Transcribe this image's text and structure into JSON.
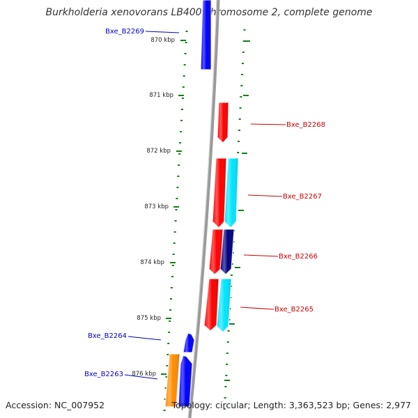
{
  "title": "Burkholderia xenovorans LB400 chromosome 2, complete genome",
  "footer": {
    "accession": "Accession: NC_007952",
    "summary": "Topology: circular; Length: 3,363,523 bp; Genes: 2,977"
  },
  "colors": {
    "backbone": "#9a9a9a",
    "tick": "#1a7a1a",
    "forward_gene": "#0000ff",
    "reverse_gene": "#ff0000",
    "cyan_gene": "#00e5ff",
    "navy_gene": "#000080",
    "orange_gene": "#ff8c00",
    "forward_label": "#0000c0",
    "reverse_label": "#cc0000"
  },
  "ruler_ticks": [
    {
      "label": "870 kbp"
    },
    {
      "label": "871 kbp"
    },
    {
      "label": "872 kbp"
    },
    {
      "label": "873 kbp"
    },
    {
      "label": "874 kbp"
    },
    {
      "label": "875 kbp"
    },
    {
      "label": "876 kbp"
    }
  ],
  "gene_labels": [
    {
      "name": "Bxe_B2269",
      "strand": "forward"
    },
    {
      "name": "Bxe_B2268",
      "strand": "reverse"
    },
    {
      "name": "Bxe_B2267",
      "strand": "reverse"
    },
    {
      "name": "Bxe_B2266",
      "strand": "reverse"
    },
    {
      "name": "Bxe_B2265",
      "strand": "reverse"
    },
    {
      "name": "Bxe_B2264",
      "strand": "forward"
    },
    {
      "name": "Bxe_B2263",
      "strand": "forward"
    }
  ],
  "features": [
    {
      "id": "b2269",
      "color": "forward_gene",
      "direction": "up"
    },
    {
      "id": "b2268",
      "color": "reverse_gene",
      "direction": "down"
    },
    {
      "id": "b2267",
      "color": "reverse_gene",
      "direction": "down"
    },
    {
      "id": "b2267-cyan",
      "color": "cyan_gene",
      "direction": "down"
    },
    {
      "id": "b2266",
      "color": "reverse_gene",
      "direction": "down"
    },
    {
      "id": "b2266-navy",
      "color": "navy_gene",
      "direction": "down"
    },
    {
      "id": "b2265",
      "color": "reverse_gene",
      "direction": "down"
    },
    {
      "id": "b2265-cyan",
      "color": "cyan_gene",
      "direction": "down"
    },
    {
      "id": "b2264",
      "color": "forward_gene",
      "direction": "up"
    },
    {
      "id": "b2263",
      "color": "forward_gene",
      "direction": "up"
    },
    {
      "id": "b2263-orange",
      "color": "orange_gene",
      "direction": "up"
    }
  ]
}
